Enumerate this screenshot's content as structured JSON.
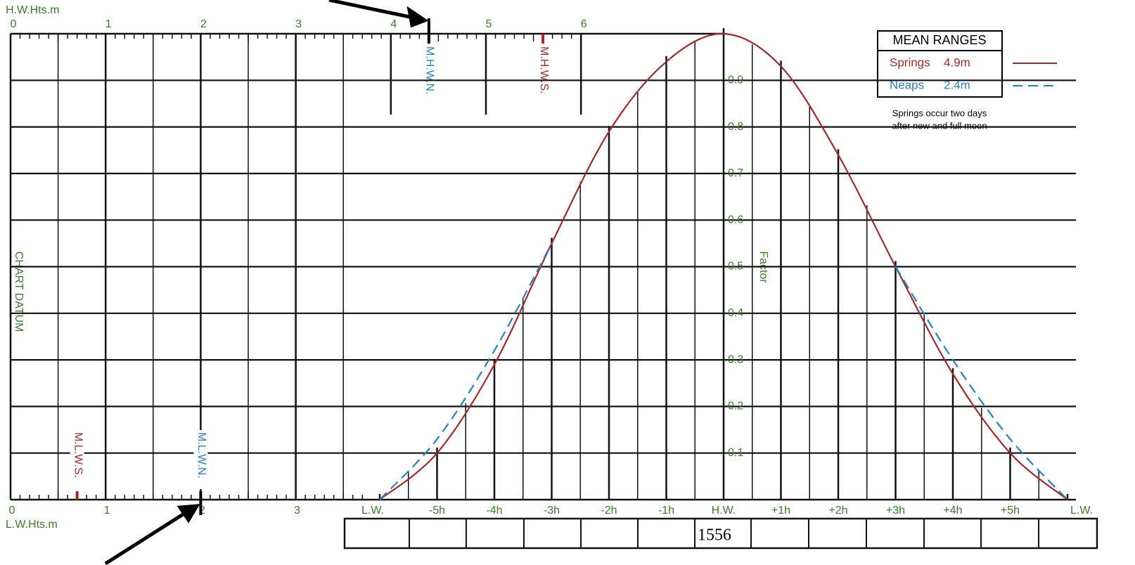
{
  "height_scale": {
    "title_top": "H.W.Hts.m",
    "title_bottom": "L.W.Hts.m",
    "top_ticks": [
      0,
      1,
      2,
      3,
      4,
      5,
      6
    ],
    "bottom_ticks": [
      0,
      1,
      2,
      3
    ]
  },
  "high_water_levels": [
    {
      "label": "M.H.W.N.",
      "value": 4.4,
      "color": "#2a80bd"
    },
    {
      "label": "M.H.W.S.",
      "value": 5.6,
      "color": "#9e2b2b"
    }
  ],
  "low_water_levels": [
    {
      "label": "M.L.W.S.",
      "value": 0.7,
      "color": "#9e2b2b"
    },
    {
      "label": "M.L.W.N.",
      "value": 2.0,
      "color": "#2a80bd"
    }
  ],
  "side_label": "CHART DATUM",
  "factor_axis": {
    "label": "Factor",
    "lim": [
      0,
      1
    ],
    "ticks": [
      0.1,
      0.2,
      0.3,
      0.4,
      0.5,
      0.6,
      0.7,
      0.8,
      0.9
    ]
  },
  "time_axis": {
    "labels": [
      "L.W.",
      "-5h",
      "-4h",
      "-3h",
      "-2h",
      "-1h",
      "H.W.",
      "+1h",
      "+2h",
      "+3h",
      "+4h",
      "+5h",
      "L.W."
    ]
  },
  "curves": [
    {
      "name": "Springs",
      "range_label": "4.9m",
      "color": "#9e2b2b",
      "dashed": false,
      "values": [
        0,
        0.1,
        0.29,
        0.55,
        0.79,
        0.94,
        1,
        0.93,
        0.74,
        0.5,
        0.27,
        0.1,
        0
      ]
    },
    {
      "name": "Neaps",
      "range_label": "2.4m",
      "color": "#2a80bd",
      "dashed": true,
      "values": [
        0,
        0.13,
        0.32,
        0.55,
        null,
        null,
        null,
        null,
        null,
        0.5,
        0.3,
        0.13,
        0
      ]
    }
  ],
  "legend_title": "MEAN RANGES",
  "note": [
    "Springs occur two days",
    "after new and full moon"
  ],
  "box_text": "1556"
}
